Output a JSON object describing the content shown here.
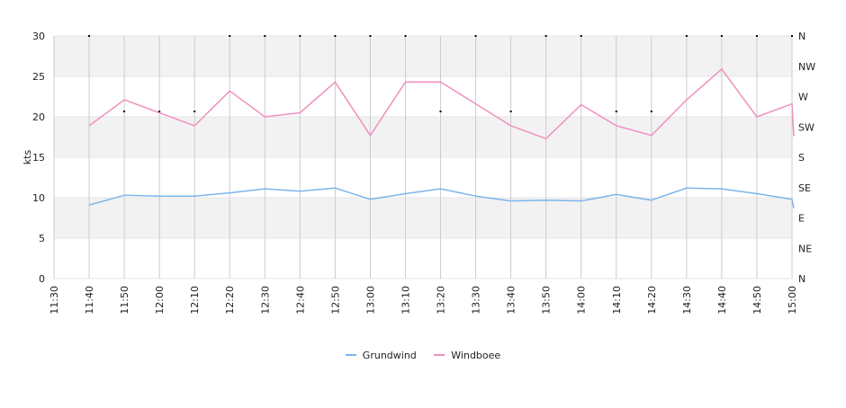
{
  "chart_data": {
    "type": "line",
    "title": "",
    "ylabel": "kts",
    "y_ticks": [
      "0",
      "5",
      "10",
      "15",
      "20",
      "25",
      "30"
    ],
    "ylim": [
      0,
      30
    ],
    "right_axis_labels": [
      "N",
      "NE",
      "E",
      "SE",
      "S",
      "SW",
      "W",
      "NW",
      "N"
    ],
    "right_axis_range_deg": [
      0,
      360
    ],
    "x_tick_labels": [
      "11:30",
      "11:40",
      "11:50",
      "12:00",
      "12:10",
      "12:20",
      "12:30",
      "12:40",
      "12:50",
      "13:00",
      "13:10",
      "13:20",
      "13:30",
      "13:40",
      "13:50",
      "14:00",
      "14:10",
      "14:20",
      "14:30",
      "14:40",
      "14:50",
      "15:00"
    ],
    "x": [
      "11:40",
      "11:50",
      "12:00",
      "12:10",
      "12:20",
      "12:30",
      "12:40",
      "12:50",
      "13:00",
      "13:10",
      "13:20",
      "13:30",
      "13:40",
      "13:50",
      "14:00",
      "14:10",
      "14:20",
      "14:30",
      "14:40",
      "14:50",
      "15:00"
    ],
    "series": [
      {
        "name": "Grundwind",
        "color": "#7cb5ec",
        "values": [
          9.1,
          10.3,
          10.2,
          10.2,
          10.6,
          11.1,
          10.8,
          11.2,
          9.8,
          10.5,
          11.1,
          10.2,
          9.6,
          9.7,
          9.6,
          10.4,
          9.7,
          11.2,
          11.1,
          10.5,
          9.8
        ],
        "last": 8.7
      },
      {
        "name": "Windboee",
        "color": "#f08fc0",
        "values": [
          18.9,
          22.1,
          20.5,
          18.9,
          23.2,
          20.0,
          20.5,
          24.3,
          17.7,
          24.3,
          24.3,
          21.6,
          18.9,
          17.3,
          21.5,
          18.9,
          17.7,
          22.1,
          25.9,
          20.0,
          21.6
        ],
        "last": 17.6
      },
      {
        "name": "direction",
        "color": "#000000",
        "values_deg": [
          360,
          248,
          248,
          248,
          360,
          360,
          360,
          360,
          360,
          360,
          248,
          360,
          248,
          360,
          360,
          248,
          248,
          360,
          360,
          360,
          360
        ]
      }
    ],
    "grid": true,
    "legend_position": "bottom-center"
  },
  "legend": [
    {
      "label": "Grundwind",
      "color": "#7cb5ec"
    },
    {
      "label": "Windboee",
      "color": "#f08fc0"
    }
  ]
}
